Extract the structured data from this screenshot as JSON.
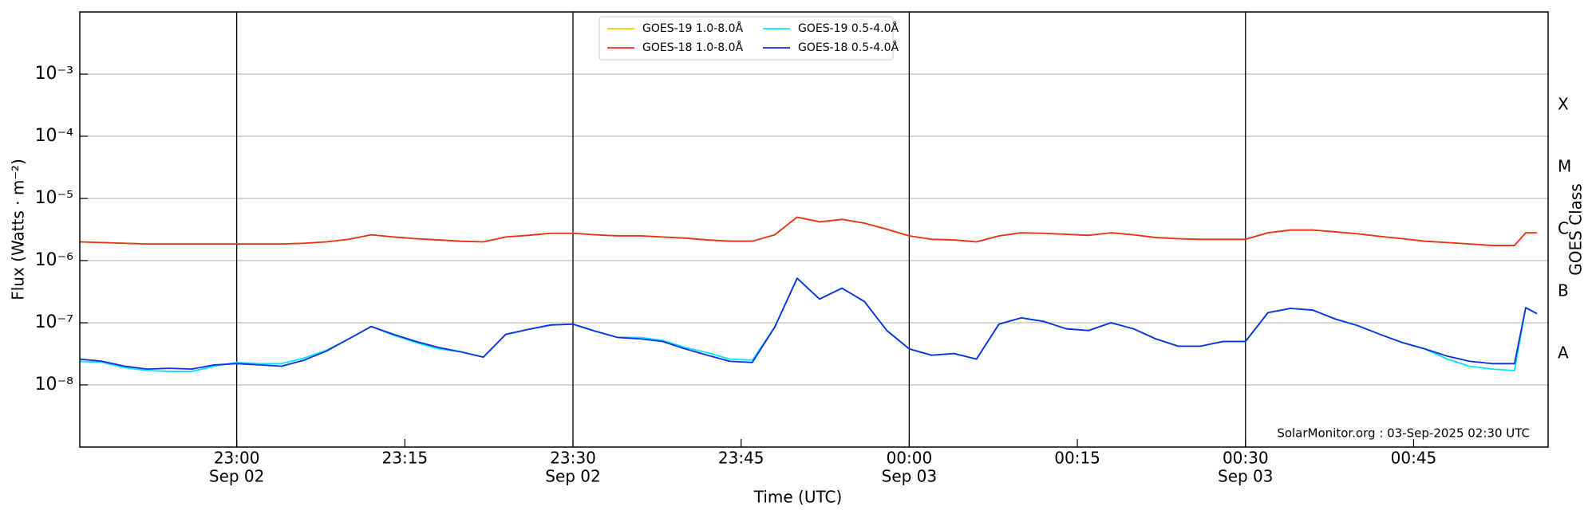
{
  "chart_data": {
    "type": "line",
    "xlabel": "Time (UTC)",
    "ylabel": "Flux (Watts · m⁻²)",
    "y2label": "GOES Class",
    "annotation": "SolarMonitor.org : 03-Sep-2025 02:30 UTC",
    "log_y": true,
    "grid": true,
    "legend": "upper center",
    "xlim": [
      "2025-09-02T22:46",
      "2025-09-03T00:57"
    ],
    "ylim": [
      1e-09,
      0.01
    ],
    "xticks": [
      {
        "value": "2025-09-02T23:00",
        "label": "23:00",
        "date": "Sep 02"
      },
      {
        "value": "2025-09-02T23:15",
        "label": "23:15"
      },
      {
        "value": "2025-09-02T23:30",
        "label": "23:30",
        "date": "Sep 02"
      },
      {
        "value": "2025-09-02T23:45",
        "label": "23:45"
      },
      {
        "value": "2025-09-03T00:00",
        "label": "00:00",
        "date": "Sep 03"
      },
      {
        "value": "2025-09-03T00:15",
        "label": "00:15"
      },
      {
        "value": "2025-09-03T00:30",
        "label": "00:30",
        "date": "Sep 03"
      },
      {
        "value": "2025-09-03T00:45",
        "label": "00:45"
      }
    ],
    "yticks": [
      {
        "value": 1e-08,
        "label": "10⁻⁸"
      },
      {
        "value": 1e-07,
        "label": "10⁻⁷"
      },
      {
        "value": 1e-06,
        "label": "10⁻⁶"
      },
      {
        "value": 1e-05,
        "label": "10⁻⁵"
      },
      {
        "value": 0.0001,
        "label": "10⁻⁴"
      },
      {
        "value": 0.001,
        "label": "10⁻³"
      }
    ],
    "y2ticks": [
      {
        "value": 3.162e-08,
        "label": "A"
      },
      {
        "value": 3.162e-07,
        "label": "B"
      },
      {
        "value": 3.162e-06,
        "label": "C"
      },
      {
        "value": 3.162e-05,
        "label": "M"
      },
      {
        "value": 0.0003162,
        "label": "X"
      }
    ],
    "x": [
      "2025-09-02T22:46",
      "2025-09-02T22:48",
      "2025-09-02T22:50",
      "2025-09-02T22:52",
      "2025-09-02T22:54",
      "2025-09-02T22:56",
      "2025-09-02T22:58",
      "2025-09-02T23:00",
      "2025-09-02T23:02",
      "2025-09-02T23:04",
      "2025-09-02T23:06",
      "2025-09-02T23:08",
      "2025-09-02T23:10",
      "2025-09-02T23:12",
      "2025-09-02T23:14",
      "2025-09-02T23:16",
      "2025-09-02T23:18",
      "2025-09-02T23:20",
      "2025-09-02T23:22",
      "2025-09-02T23:24",
      "2025-09-02T23:26",
      "2025-09-02T23:28",
      "2025-09-02T23:30",
      "2025-09-02T23:32",
      "2025-09-02T23:34",
      "2025-09-02T23:36",
      "2025-09-02T23:38",
      "2025-09-02T23:40",
      "2025-09-02T23:42",
      "2025-09-02T23:44",
      "2025-09-02T23:46",
      "2025-09-02T23:48",
      "2025-09-02T23:50",
      "2025-09-02T23:52",
      "2025-09-02T23:54",
      "2025-09-02T23:56",
      "2025-09-02T23:58",
      "2025-09-03T00:00",
      "2025-09-03T00:02",
      "2025-09-03T00:04",
      "2025-09-03T00:06",
      "2025-09-03T00:08",
      "2025-09-03T00:10",
      "2025-09-03T00:12",
      "2025-09-03T00:14",
      "2025-09-03T00:16",
      "2025-09-03T00:18",
      "2025-09-03T00:20",
      "2025-09-03T00:22",
      "2025-09-03T00:24",
      "2025-09-03T00:26",
      "2025-09-03T00:28",
      "2025-09-03T00:30",
      "2025-09-03T00:32",
      "2025-09-03T00:34",
      "2025-09-03T00:36",
      "2025-09-03T00:38",
      "2025-09-03T00:40",
      "2025-09-03T00:42",
      "2025-09-03T00:44",
      "2025-09-03T00:46",
      "2025-09-03T00:48",
      "2025-09-03T00:50",
      "2025-09-03T00:52",
      "2025-09-03T00:54",
      "2025-09-03T00:55",
      "2025-09-03T00:56"
    ],
    "series": [
      {
        "name": "GOES-19 1.0-8.0Å",
        "color": "#f2d100",
        "values": [
          2e-06,
          1.95e-06,
          1.9e-06,
          1.85e-06,
          1.85e-06,
          1.85e-06,
          1.85e-06,
          1.85e-06,
          1.85e-06,
          1.85e-06,
          1.9e-06,
          2e-06,
          2.2e-06,
          2.6e-06,
          2.4e-06,
          2.25e-06,
          2.15e-06,
          2.05e-06,
          2e-06,
          2.4e-06,
          2.55e-06,
          2.75e-06,
          2.75e-06,
          2.6e-06,
          2.5e-06,
          2.5e-06,
          2.4e-06,
          2.3e-06,
          2.15e-06,
          2.05e-06,
          2.05e-06,
          2.6e-06,
          5e-06,
          4.2e-06,
          4.6e-06,
          4e-06,
          3.2e-06,
          2.5e-06,
          2.2e-06,
          2.15e-06,
          2e-06,
          2.5e-06,
          2.8e-06,
          2.75e-06,
          2.65e-06,
          2.55e-06,
          2.8e-06,
          2.6e-06,
          2.35e-06,
          2.25e-06,
          2.2e-06,
          2.2e-06,
          2.2e-06,
          2.8e-06,
          3.1e-06,
          3.1e-06,
          2.9e-06,
          2.7e-06,
          2.45e-06,
          2.25e-06,
          2.05e-06,
          1.95e-06,
          1.85e-06,
          1.75e-06,
          1.75e-06,
          2.8e-06,
          2.8e-06
        ]
      },
      {
        "name": "GOES-18 1.0-8.0Å",
        "color": "#e8301c",
        "values": [
          2e-06,
          1.95e-06,
          1.9e-06,
          1.85e-06,
          1.85e-06,
          1.85e-06,
          1.85e-06,
          1.85e-06,
          1.85e-06,
          1.85e-06,
          1.9e-06,
          2e-06,
          2.2e-06,
          2.6e-06,
          2.4e-06,
          2.25e-06,
          2.15e-06,
          2.05e-06,
          2e-06,
          2.4e-06,
          2.55e-06,
          2.75e-06,
          2.75e-06,
          2.6e-06,
          2.5e-06,
          2.5e-06,
          2.4e-06,
          2.3e-06,
          2.15e-06,
          2.05e-06,
          2.05e-06,
          2.6e-06,
          5e-06,
          4.2e-06,
          4.6e-06,
          4e-06,
          3.2e-06,
          2.5e-06,
          2.2e-06,
          2.15e-06,
          2e-06,
          2.5e-06,
          2.8e-06,
          2.75e-06,
          2.65e-06,
          2.55e-06,
          2.8e-06,
          2.6e-06,
          2.35e-06,
          2.25e-06,
          2.2e-06,
          2.2e-06,
          2.2e-06,
          2.8e-06,
          3.1e-06,
          3.1e-06,
          2.9e-06,
          2.7e-06,
          2.45e-06,
          2.25e-06,
          2.05e-06,
          1.95e-06,
          1.85e-06,
          1.75e-06,
          1.75e-06,
          2.8e-06,
          2.8e-06
        ]
      },
      {
        "name": "GOES-19 0.5-4.0Å",
        "color": "#00e5ff",
        "values": [
          2.4e-08,
          2.3e-08,
          1.9e-08,
          1.7e-08,
          1.65e-08,
          1.65e-08,
          2e-08,
          2.3e-08,
          2.2e-08,
          2.2e-08,
          2.7e-08,
          3.6e-08,
          5.5e-08,
          8.7e-08,
          6.3e-08,
          4.8e-08,
          3.8e-08,
          3.4e-08,
          2.8e-08,
          6.5e-08,
          7.8e-08,
          9.2e-08,
          9.5e-08,
          7.3e-08,
          5.8e-08,
          5.8e-08,
          5.2e-08,
          4e-08,
          3.3e-08,
          2.6e-08,
          2.5e-08,
          8.5e-08,
          5.2e-07,
          2.4e-07,
          3.6e-07,
          2.2e-07,
          7.5e-08,
          3.8e-08,
          3e-08,
          3.2e-08,
          2.6e-08,
          9.5e-08,
          1.2e-07,
          1.05e-07,
          8e-08,
          7.5e-08,
          1e-07,
          8e-08,
          5.5e-08,
          4.2e-08,
          4.2e-08,
          5e-08,
          5e-08,
          1.45e-07,
          1.7e-07,
          1.6e-07,
          1.15e-07,
          9e-08,
          6.5e-08,
          4.8e-08,
          3.8e-08,
          2.6e-08,
          2e-08,
          1.8e-08,
          1.7e-08,
          1.75e-07,
          1.4e-07
        ]
      },
      {
        "name": "GOES-18 0.5-4.0Å",
        "color": "#0a2de0",
        "values": [
          2.6e-08,
          2.4e-08,
          2e-08,
          1.8e-08,
          1.85e-08,
          1.8e-08,
          2.1e-08,
          2.2e-08,
          2.1e-08,
          2e-08,
          2.5e-08,
          3.5e-08,
          5.5e-08,
          8.7e-08,
          6.5e-08,
          5e-08,
          4e-08,
          3.4e-08,
          2.8e-08,
          6.5e-08,
          7.8e-08,
          9.2e-08,
          9.5e-08,
          7.3e-08,
          5.8e-08,
          5.5e-08,
          5e-08,
          3.8e-08,
          3e-08,
          2.4e-08,
          2.3e-08,
          8.5e-08,
          5.2e-07,
          2.4e-07,
          3.6e-07,
          2.2e-07,
          7.5e-08,
          3.8e-08,
          3e-08,
          3.2e-08,
          2.6e-08,
          9.5e-08,
          1.2e-07,
          1.05e-07,
          8e-08,
          7.5e-08,
          1e-07,
          8e-08,
          5.5e-08,
          4.2e-08,
          4.2e-08,
          5e-08,
          5e-08,
          1.45e-07,
          1.7e-07,
          1.6e-07,
          1.15e-07,
          9e-08,
          6.5e-08,
          4.8e-08,
          3.8e-08,
          2.9e-08,
          2.4e-08,
          2.2e-08,
          2.2e-08,
          1.75e-07,
          1.4e-07
        ]
      }
    ]
  }
}
